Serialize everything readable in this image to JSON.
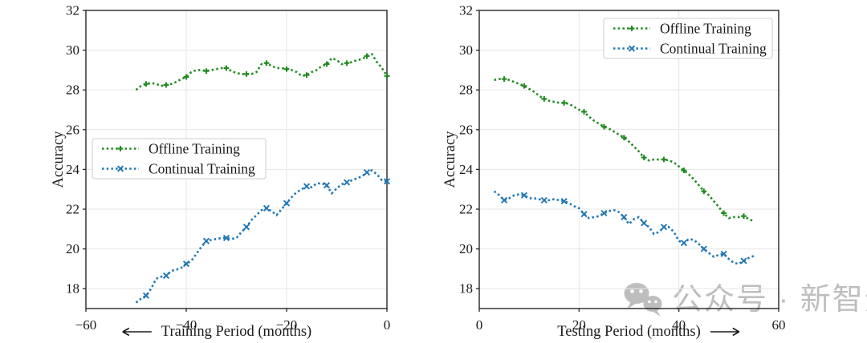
{
  "figure": {
    "background": "#ffffff",
    "text_color": "#1a1a1a",
    "grid_color": "#e6e6e6",
    "spine_color": "#262626"
  },
  "chart_data": [
    {
      "type": "line",
      "title": "",
      "xlabel": "⟵ Training Period (months)",
      "ylabel": "Accuracy",
      "xlim": [
        -60,
        0
      ],
      "ylim": [
        17,
        32
      ],
      "xtick_values": [
        -60,
        -40,
        -20,
        0
      ],
      "xtick_labels": [
        "−60",
        "−40",
        "−20",
        "0"
      ],
      "ytick_values": [
        18,
        20,
        22,
        24,
        26,
        28,
        30,
        32
      ],
      "ytick_labels": [
        "18",
        "20",
        "22",
        "24",
        "26",
        "28",
        "30",
        "32"
      ],
      "grid": true,
      "legend_position": "center-left",
      "series": [
        {
          "name": "Offline Training",
          "color": "#228B22",
          "marker": "plus",
          "linestyle": "dotted",
          "x": [
            -50,
            -49,
            -48,
            -47,
            -46,
            -45,
            -44,
            -43,
            -42,
            -41,
            -40,
            -39,
            -38,
            -37,
            -36,
            -35,
            -34,
            -33,
            -32,
            -31,
            -30,
            -29,
            -28,
            -27,
            -26,
            -25,
            -24,
            -23,
            -22,
            -21,
            -20,
            -19,
            -18,
            -17,
            -16,
            -15,
            -14,
            -13,
            -12,
            -11,
            -10,
            -9,
            -8,
            -7,
            -6,
            -5,
            -4,
            -3,
            -2,
            -1,
            0
          ],
          "y": [
            28.0,
            28.2,
            28.3,
            28.35,
            28.3,
            28.2,
            28.25,
            28.3,
            28.4,
            28.55,
            28.65,
            28.9,
            29.0,
            29.0,
            28.95,
            29.0,
            29.05,
            29.1,
            29.1,
            28.95,
            28.85,
            28.8,
            28.8,
            28.8,
            28.9,
            29.3,
            29.35,
            29.2,
            29.1,
            29.1,
            29.05,
            29.0,
            28.9,
            28.7,
            28.75,
            28.9,
            29.0,
            29.2,
            29.3,
            29.6,
            29.5,
            29.3,
            29.35,
            29.4,
            29.5,
            29.55,
            29.7,
            29.8,
            29.4,
            29.1,
            28.7
          ]
        },
        {
          "name": "Continual Training",
          "color": "#1f77b4",
          "marker": "x",
          "linestyle": "dotted",
          "x": [
            -50,
            -49,
            -48,
            -47,
            -46,
            -45,
            -44,
            -43,
            -42,
            -41,
            -40,
            -39,
            -38,
            -37,
            -36,
            -35,
            -34,
            -33,
            -32,
            -31,
            -30,
            -29,
            -28,
            -27,
            -26,
            -25,
            -24,
            -23,
            -22,
            -21,
            -20,
            -19,
            -18,
            -17,
            -16,
            -15,
            -14,
            -13,
            -12,
            -11,
            -10,
            -9,
            -8,
            -7,
            -6,
            -5,
            -4,
            -3,
            -2,
            -1,
            0
          ],
          "y": [
            17.3,
            17.5,
            17.65,
            18.0,
            18.5,
            18.6,
            18.65,
            18.9,
            18.95,
            19.05,
            19.25,
            19.4,
            19.75,
            20.1,
            20.4,
            20.45,
            20.5,
            20.55,
            20.55,
            20.5,
            20.55,
            20.85,
            21.1,
            21.45,
            21.7,
            21.95,
            22.05,
            21.9,
            21.7,
            22.0,
            22.3,
            22.6,
            22.85,
            23.0,
            23.15,
            23.1,
            23.3,
            23.3,
            23.2,
            22.8,
            23.05,
            23.25,
            23.35,
            23.45,
            23.55,
            23.65,
            23.85,
            23.95,
            23.75,
            23.45,
            23.4
          ]
        }
      ]
    },
    {
      "type": "line",
      "title": "",
      "xlabel": "Testing Period (months) ⟶",
      "ylabel": "Accuracy",
      "xlim": [
        0,
        60
      ],
      "ylim": [
        17,
        32
      ],
      "xtick_values": [
        0,
        20,
        40,
        60
      ],
      "xtick_labels": [
        "0",
        "20",
        "40",
        "60"
      ],
      "ytick_values": [
        18,
        20,
        22,
        24,
        26,
        28,
        30,
        32
      ],
      "ytick_labels": [
        "18",
        "20",
        "22",
        "24",
        "26",
        "28",
        "30",
        "32"
      ],
      "grid": true,
      "legend_position": "top-right",
      "series": [
        {
          "name": "Offline Training",
          "color": "#228B22",
          "marker": "plus",
          "linestyle": "dotted",
          "x": [
            3,
            4,
            5,
            6,
            7,
            8,
            9,
            10,
            11,
            12,
            13,
            14,
            15,
            16,
            17,
            18,
            19,
            20,
            21,
            22,
            23,
            24,
            25,
            26,
            27,
            28,
            29,
            30,
            31,
            32,
            33,
            34,
            35,
            36,
            37,
            38,
            39,
            40,
            41,
            42,
            43,
            44,
            45,
            46,
            47,
            48,
            49,
            50,
            51,
            52,
            53,
            54,
            55
          ],
          "y": [
            28.5,
            28.55,
            28.55,
            28.5,
            28.4,
            28.3,
            28.2,
            28.05,
            27.9,
            27.7,
            27.55,
            27.45,
            27.4,
            27.35,
            27.35,
            27.3,
            27.15,
            27.0,
            26.9,
            26.65,
            26.45,
            26.3,
            26.15,
            26.05,
            25.9,
            25.75,
            25.6,
            25.4,
            25.15,
            24.9,
            24.6,
            24.45,
            24.5,
            24.5,
            24.5,
            24.45,
            24.35,
            24.15,
            23.95,
            23.75,
            23.5,
            23.2,
            22.9,
            22.7,
            22.4,
            22.1,
            21.8,
            21.55,
            21.6,
            21.6,
            21.65,
            21.5,
            21.4
          ]
        },
        {
          "name": "Continual Training",
          "color": "#1f77b4",
          "marker": "x",
          "linestyle": "dotted",
          "x": [
            3,
            4,
            5,
            6,
            7,
            8,
            9,
            10,
            11,
            12,
            13,
            14,
            15,
            16,
            17,
            18,
            19,
            20,
            21,
            22,
            23,
            24,
            25,
            26,
            27,
            28,
            29,
            30,
            31,
            32,
            33,
            34,
            35,
            36,
            37,
            38,
            39,
            40,
            41,
            42,
            43,
            44,
            45,
            46,
            47,
            48,
            49,
            50,
            51,
            52,
            53,
            54,
            55
          ],
          "y": [
            22.9,
            22.7,
            22.45,
            22.55,
            22.7,
            22.75,
            22.7,
            22.55,
            22.55,
            22.5,
            22.45,
            22.45,
            22.5,
            22.45,
            22.4,
            22.3,
            22.15,
            22.05,
            21.75,
            21.55,
            21.6,
            21.65,
            21.8,
            21.9,
            21.95,
            21.85,
            21.6,
            21.25,
            21.5,
            21.6,
            21.3,
            21.1,
            20.75,
            20.85,
            21.1,
            21.1,
            20.85,
            20.4,
            20.3,
            20.5,
            20.45,
            20.25,
            20.0,
            19.8,
            19.6,
            19.7,
            19.75,
            19.5,
            19.3,
            19.25,
            19.4,
            19.55,
            19.65
          ]
        }
      ]
    }
  ],
  "watermark": {
    "icon": "wechat-icon",
    "text": "公众号 · 新智元",
    "color": "#b3b3b3"
  }
}
